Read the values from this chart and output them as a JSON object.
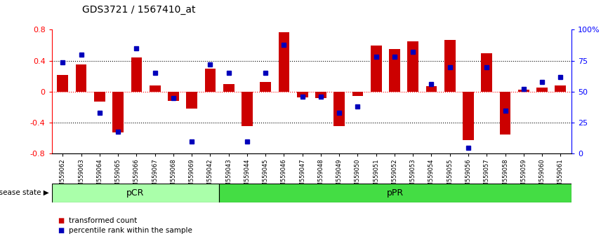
{
  "title": "GDS3721 / 1567410_at",
  "samples": [
    "GSM559062",
    "GSM559063",
    "GSM559064",
    "GSM559065",
    "GSM559066",
    "GSM559067",
    "GSM559068",
    "GSM559069",
    "GSM559042",
    "GSM559043",
    "GSM559044",
    "GSM559045",
    "GSM559046",
    "GSM559047",
    "GSM559048",
    "GSM559049",
    "GSM559050",
    "GSM559051",
    "GSM559052",
    "GSM559053",
    "GSM559054",
    "GSM559055",
    "GSM559056",
    "GSM559057",
    "GSM559058",
    "GSM559059",
    "GSM559060",
    "GSM559061"
  ],
  "bar_values": [
    0.22,
    0.35,
    -0.13,
    -0.52,
    0.44,
    0.08,
    -0.12,
    -0.22,
    0.3,
    0.1,
    -0.44,
    0.13,
    0.77,
    -0.07,
    -0.08,
    -0.44,
    -0.05,
    0.6,
    0.55,
    0.65,
    0.07,
    0.67,
    -0.62,
    0.5,
    -0.55,
    0.03,
    0.05,
    0.08
  ],
  "percentile_values": [
    74,
    80,
    33,
    18,
    85,
    65,
    45,
    10,
    72,
    65,
    10,
    65,
    88,
    46,
    46,
    33,
    38,
    78,
    78,
    82,
    56,
    70,
    5,
    70,
    35,
    52,
    58,
    62
  ],
  "pCR_count": 9,
  "pPR_count": 19,
  "bar_color": "#CC0000",
  "dot_color": "#0000BB",
  "pCR_color": "#AAFFAA",
  "pPR_color": "#44DD44",
  "ylim": [
    -0.8,
    0.8
  ],
  "right_ylim": [
    0,
    100
  ],
  "legend_bar": "transformed count",
  "legend_dot": "percentile rank within the sample",
  "pCR_label": "pCR",
  "pPR_label": "pPR",
  "disease_state_label": "disease state"
}
